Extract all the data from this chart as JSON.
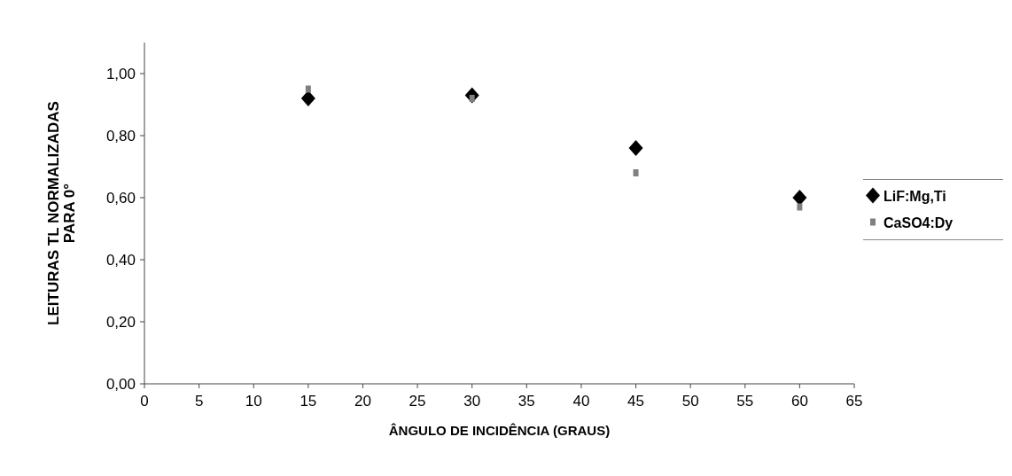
{
  "chart_data": {
    "type": "scatter",
    "xlabel": "ÂNGULO DE INCIDÊNCIA (GRAUS)",
    "ylabel": "LEITURAS TL NORMALIZADAS\nPARA 0°",
    "x": [
      15,
      30,
      45,
      60
    ],
    "series": [
      {
        "name": "LiF:Mg,Ti",
        "color": "#000000",
        "marker": "diamond",
        "values": [
          0.92,
          0.93,
          0.76,
          0.6
        ]
      },
      {
        "name": "CaSO4:Dy",
        "color": "#808080",
        "marker": "square",
        "values": [
          0.95,
          0.92,
          0.68,
          0.57
        ]
      }
    ],
    "xlim": [
      0,
      65
    ],
    "xticks": [
      0,
      5,
      10,
      15,
      20,
      25,
      30,
      35,
      40,
      45,
      50,
      55,
      60,
      65
    ],
    "ylim": [
      0,
      1.1
    ],
    "yticks": [
      {
        "value": 0,
        "label": "0,00"
      },
      {
        "value": 0.2,
        "label": "0,20"
      },
      {
        "value": 0.4,
        "label": "0,40"
      },
      {
        "value": 0.6,
        "label": "0,60"
      },
      {
        "value": 0.8,
        "label": "0,80"
      },
      {
        "value": 1,
        "label": "1,00"
      }
    ],
    "legend": "right"
  }
}
